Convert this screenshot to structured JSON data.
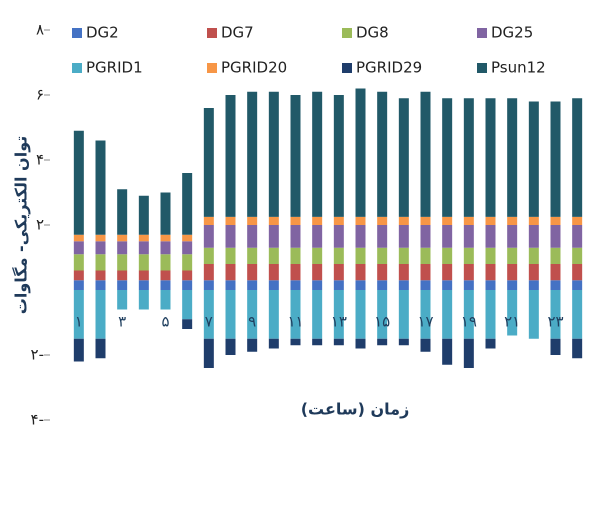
{
  "chart_data": {
    "type": "bar",
    "stacked": true,
    "ylabel": "توان الکتریکی- مگاوات",
    "xlabel": "زمان (ساعت)",
    "categories": [
      "۱",
      null,
      "۳",
      null,
      "۵",
      null,
      "۷",
      null,
      "۹",
      null,
      "۱۱",
      null,
      "۱۳",
      null,
      "۱۵",
      null,
      "۱۷",
      null,
      "۱۹",
      null,
      "۲۱",
      null,
      "۲۳",
      null
    ],
    "ylim": [
      -4,
      8
    ],
    "yticks": [
      {
        "value": 8,
        "label": "۸"
      },
      {
        "value": 6,
        "label": "۶"
      },
      {
        "value": 4,
        "label": "۴"
      },
      {
        "value": 2,
        "label": "۲"
      },
      {
        "value": -2,
        "label": "۲-"
      },
      {
        "value": -4,
        "label": "۴-"
      }
    ],
    "grid": false,
    "series": [
      {
        "name": "DG2",
        "color": "#4472c4",
        "values": [
          0.3,
          0.3,
          0.3,
          0.3,
          0.3,
          0.3,
          0.3,
          0.3,
          0.3,
          0.3,
          0.3,
          0.3,
          0.3,
          0.3,
          0.3,
          0.3,
          0.3,
          0.3,
          0.3,
          0.3,
          0.3,
          0.3,
          0.3,
          0.3
        ]
      },
      {
        "name": "DG7",
        "color": "#c0504d",
        "values": [
          0.3,
          0.3,
          0.3,
          0.3,
          0.3,
          0.3,
          0.5,
          0.5,
          0.5,
          0.5,
          0.5,
          0.5,
          0.5,
          0.5,
          0.5,
          0.5,
          0.5,
          0.5,
          0.5,
          0.5,
          0.5,
          0.5,
          0.5,
          0.5
        ]
      },
      {
        "name": "DG8",
        "color": "#9bbb59",
        "values": [
          0.5,
          0.5,
          0.5,
          0.5,
          0.5,
          0.5,
          0.5,
          0.5,
          0.5,
          0.5,
          0.5,
          0.5,
          0.5,
          0.5,
          0.5,
          0.5,
          0.5,
          0.5,
          0.5,
          0.5,
          0.5,
          0.5,
          0.5,
          0.5
        ]
      },
      {
        "name": "DG25",
        "color": "#8064a2",
        "values": [
          0.4,
          0.4,
          0.4,
          0.4,
          0.4,
          0.4,
          0.7,
          0.7,
          0.7,
          0.7,
          0.7,
          0.7,
          0.7,
          0.7,
          0.7,
          0.7,
          0.7,
          0.7,
          0.7,
          0.7,
          0.7,
          0.7,
          0.7,
          0.7
        ]
      },
      {
        "name": "PGRID1",
        "color": "#4bacc6",
        "values": [
          -1.5,
          -1.5,
          -0.6,
          -0.6,
          -0.6,
          -0.9,
          -1.5,
          -1.5,
          -1.5,
          -1.5,
          -1.5,
          -1.5,
          -1.5,
          -1.5,
          -1.5,
          -1.5,
          -1.5,
          -1.5,
          -1.5,
          -1.5,
          -1.4,
          -1.5,
          -1.5,
          -1.5
        ]
      },
      {
        "name": "PGRID20",
        "color": "#f79646",
        "values": [
          0.2,
          0.2,
          0.2,
          0.2,
          0.2,
          0.2,
          0.25,
          0.25,
          0.25,
          0.25,
          0.25,
          0.25,
          0.25,
          0.25,
          0.25,
          0.25,
          0.25,
          0.25,
          0.25,
          0.25,
          0.25,
          0.25,
          0.25,
          0.25
        ]
      },
      {
        "name": "PGRID29",
        "color": "#1f3d6b",
        "values": [
          -0.7,
          -0.6,
          0,
          0,
          0,
          -0.3,
          -0.9,
          -0.5,
          -0.4,
          -0.3,
          -0.2,
          -0.2,
          -0.2,
          -0.3,
          -0.2,
          -0.2,
          -0.4,
          -0.8,
          -0.9,
          -0.3,
          0,
          0,
          -0.5,
          -0.6
        ]
      },
      {
        "name": "Psun12",
        "color": "#215968",
        "values": [
          3.2,
          2.9,
          1.4,
          1.2,
          1.3,
          1.9,
          3.35,
          3.75,
          3.85,
          3.85,
          3.75,
          3.85,
          3.75,
          3.95,
          3.85,
          3.65,
          3.85,
          3.65,
          3.65,
          3.65,
          3.65,
          3.55,
          3.55,
          3.65
        ]
      }
    ]
  }
}
